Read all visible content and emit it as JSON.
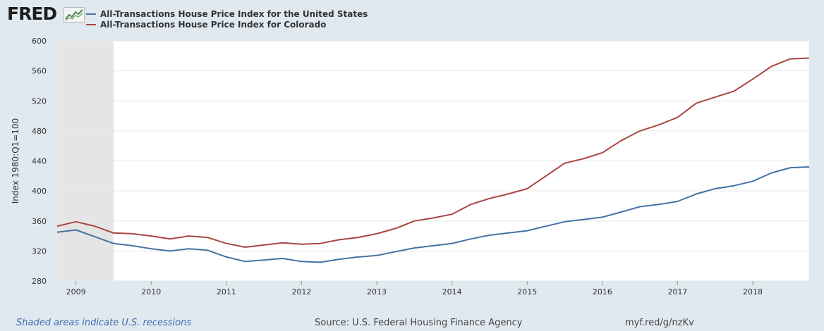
{
  "brand": {
    "logo_text": "FRED"
  },
  "legend": [
    {
      "label": "All-Transactions House Price Index for the United States",
      "color": "#4572a7"
    },
    {
      "label": "All-Transactions House Price Index for Colorado",
      "color": "#aa4643"
    }
  ],
  "footer": {
    "recession_note": "Shaded areas indicate U.S. recessions",
    "source": "Source: U.S. Federal Housing Finance Agency",
    "short_link": "myf.red/g/nzKv"
  },
  "chart_data": {
    "type": "line",
    "ylabel": "Index 1980:Q1=100",
    "xlabel": "",
    "ylim": [
      280,
      600
    ],
    "yticks": [
      280,
      320,
      360,
      400,
      440,
      480,
      520,
      560,
      600
    ],
    "xlim": [
      2008.75,
      2018.75
    ],
    "xticks": [
      "2009",
      "2010",
      "2011",
      "2012",
      "2013",
      "2014",
      "2015",
      "2016",
      "2017",
      "2018"
    ],
    "grid": true,
    "recession_shading": [
      {
        "start": "2008-Q4",
        "end": "2009-Q2"
      }
    ],
    "x": [
      "2008-Q4",
      "2009-Q1",
      "2009-Q2",
      "2009-Q3",
      "2009-Q4",
      "2010-Q1",
      "2010-Q2",
      "2010-Q3",
      "2010-Q4",
      "2011-Q1",
      "2011-Q2",
      "2011-Q3",
      "2011-Q4",
      "2012-Q1",
      "2012-Q2",
      "2012-Q3",
      "2012-Q4",
      "2013-Q1",
      "2013-Q2",
      "2013-Q3",
      "2013-Q4",
      "2014-Q1",
      "2014-Q2",
      "2014-Q3",
      "2014-Q4",
      "2015-Q1",
      "2015-Q2",
      "2015-Q3",
      "2015-Q4",
      "2016-Q1",
      "2016-Q2",
      "2016-Q3",
      "2016-Q4",
      "2017-Q1",
      "2017-Q2",
      "2017-Q3",
      "2017-Q4",
      "2018-Q1",
      "2018-Q2",
      "2018-Q3",
      "2018-Q4"
    ],
    "series": [
      {
        "name": "All-Transactions House Price Index for the United States",
        "color": "#4572a7",
        "values": [
          345,
          348,
          339,
          330,
          327,
          323,
          320,
          323,
          321,
          312,
          306,
          308,
          310,
          306,
          305,
          309,
          312,
          314,
          319,
          324,
          327,
          330,
          336,
          341,
          344,
          347,
          353,
          359,
          362,
          365,
          372,
          379,
          382,
          386,
          396,
          403,
          407,
          413,
          424,
          431,
          432
        ]
      },
      {
        "name": "All-Transactions House Price Index for Colorado",
        "color": "#aa4643",
        "values": [
          353,
          359,
          353,
          344,
          343,
          340,
          336,
          340,
          338,
          330,
          325,
          328,
          331,
          329,
          330,
          335,
          338,
          343,
          350,
          360,
          364,
          369,
          382,
          390,
          396,
          403,
          420,
          437,
          443,
          451,
          467,
          480,
          488,
          498,
          517,
          525,
          533,
          549,
          566,
          576,
          577
        ]
      }
    ]
  }
}
